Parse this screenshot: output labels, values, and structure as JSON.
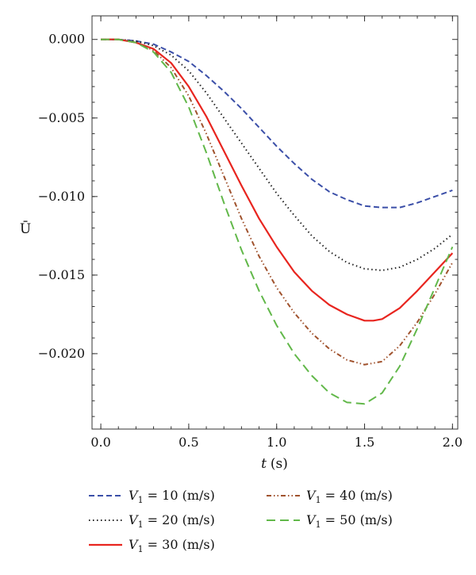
{
  "chart_data": {
    "type": "line",
    "title": "",
    "xlabel_var": "t",
    "xlabel_unit": "(s)",
    "ylabel": "Ū",
    "xlim": [
      -0.05,
      2.03
    ],
    "ylim": [
      -0.0248,
      0.0015
    ],
    "xticks": [
      0.0,
      0.5,
      1.0,
      1.5,
      2.0
    ],
    "xtick_labels": [
      "0.0",
      "0.5",
      "1.0",
      "1.5",
      "2.0"
    ],
    "yticks": [
      0.0,
      -0.005,
      -0.01,
      -0.015,
      -0.02
    ],
    "ytick_labels": [
      "0.000",
      "−0.005",
      "−0.010",
      "−0.015",
      "−0.020"
    ],
    "grid": false,
    "legend_position": "bottom",
    "series": [
      {
        "name": "V1 = 10 (m/s)",
        "legend_var": "V",
        "legend_sub": "1",
        "legend_rest": " = 10 (m/s)",
        "color": "#3b4fa8",
        "dash": "7,4",
        "x": [
          0.0,
          0.1,
          0.2,
          0.3,
          0.4,
          0.5,
          0.6,
          0.7,
          0.8,
          0.9,
          1.0,
          1.1,
          1.2,
          1.3,
          1.4,
          1.5,
          1.6,
          1.65,
          1.7,
          1.8,
          1.9,
          2.0
        ],
        "y": [
          0.0,
          0.0,
          -0.0001,
          -0.0003,
          -0.0008,
          -0.0014,
          -0.0023,
          -0.0033,
          -0.0044,
          -0.0056,
          -0.0068,
          -0.0079,
          -0.0089,
          -0.0097,
          -0.0102,
          -0.0106,
          -0.0107,
          -0.0107,
          -0.0107,
          -0.0104,
          -0.01,
          -0.0096
        ]
      },
      {
        "name": "V1 = 20 (m/s)",
        "legend_var": "V",
        "legend_sub": "1",
        "legend_rest": " = 20 (m/s)",
        "color": "#222222",
        "dash": "1.5,3.5",
        "x": [
          0.0,
          0.1,
          0.2,
          0.3,
          0.4,
          0.5,
          0.6,
          0.7,
          0.8,
          0.9,
          1.0,
          1.1,
          1.2,
          1.3,
          1.4,
          1.5,
          1.6,
          1.7,
          1.8,
          1.9,
          2.0
        ],
        "y": [
          0.0,
          0.0,
          -0.0001,
          -0.0004,
          -0.001,
          -0.002,
          -0.0034,
          -0.005,
          -0.0066,
          -0.0082,
          -0.0098,
          -0.0112,
          -0.0125,
          -0.0135,
          -0.0142,
          -0.0146,
          -0.0147,
          -0.0145,
          -0.014,
          -0.0133,
          -0.0124
        ]
      },
      {
        "name": "V1 = 30 (m/s)",
        "legend_var": "V",
        "legend_sub": "1",
        "legend_rest": " = 30 (m/s)",
        "color": "#e8251f",
        "dash": "",
        "x": [
          0.0,
          0.1,
          0.2,
          0.3,
          0.4,
          0.5,
          0.6,
          0.7,
          0.8,
          0.9,
          1.0,
          1.1,
          1.2,
          1.3,
          1.4,
          1.5,
          1.55,
          1.6,
          1.7,
          1.8,
          1.9,
          2.0
        ],
        "y": [
          0.0,
          0.0,
          -0.0002,
          -0.0006,
          -0.0015,
          -0.003,
          -0.0049,
          -0.0071,
          -0.0093,
          -0.0114,
          -0.0132,
          -0.0148,
          -0.016,
          -0.0169,
          -0.0175,
          -0.0179,
          -0.0179,
          -0.0178,
          -0.0171,
          -0.016,
          -0.0148,
          -0.0136
        ]
      },
      {
        "name": "V1 = 40 (m/s)",
        "legend_var": "V",
        "legend_sub": "1",
        "legend_rest": " = 40 (m/s)",
        "color": "#a0522d",
        "dash": "6,3,1.5,3,1.5,3",
        "x": [
          0.0,
          0.1,
          0.2,
          0.3,
          0.4,
          0.5,
          0.6,
          0.7,
          0.8,
          0.9,
          1.0,
          1.1,
          1.2,
          1.3,
          1.4,
          1.5,
          1.6,
          1.7,
          1.8,
          1.9,
          2.0
        ],
        "y": [
          0.0,
          0.0,
          -0.0002,
          -0.0007,
          -0.0018,
          -0.0036,
          -0.006,
          -0.0087,
          -0.0114,
          -0.0138,
          -0.0158,
          -0.0174,
          -0.0187,
          -0.0197,
          -0.0204,
          -0.0207,
          -0.0205,
          -0.0195,
          -0.018,
          -0.0162,
          -0.0142
        ]
      },
      {
        "name": "V1 = 50 (m/s)",
        "legend_var": "V",
        "legend_sub": "1",
        "legend_rest": " = 50 (m/s)",
        "color": "#62b84a",
        "dash": "11,6",
        "x": [
          0.0,
          0.1,
          0.2,
          0.3,
          0.4,
          0.5,
          0.6,
          0.7,
          0.8,
          0.9,
          1.0,
          1.1,
          1.2,
          1.3,
          1.4,
          1.5,
          1.6,
          1.7,
          1.8,
          1.9,
          2.0
        ],
        "y": [
          0.0,
          0.0,
          -0.0002,
          -0.0008,
          -0.0021,
          -0.0043,
          -0.0072,
          -0.0104,
          -0.0134,
          -0.016,
          -0.0182,
          -0.02,
          -0.0214,
          -0.0225,
          -0.0231,
          -0.0232,
          -0.0225,
          -0.0208,
          -0.0184,
          -0.0158,
          -0.0132
        ]
      }
    ]
  }
}
